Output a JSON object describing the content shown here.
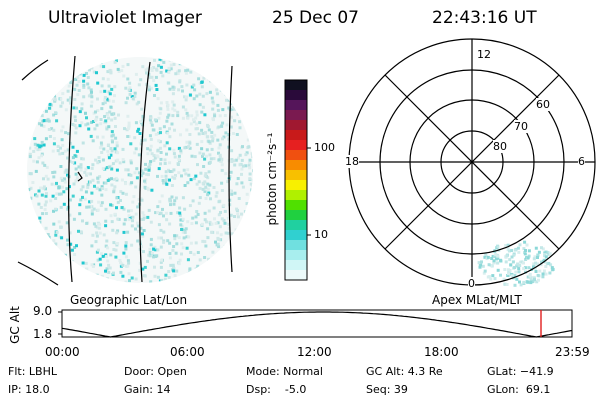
{
  "header": {
    "title": "Ultraviolet Imager",
    "date": "25 Dec 07",
    "time": "22:43:16 UT"
  },
  "colorbar": {
    "unit_label": "photon cm⁻²s⁻¹",
    "ticks": [
      "100",
      "10"
    ],
    "colors": [
      "#101020",
      "#2a0a3a",
      "#55155a",
      "#7a1a50",
      "#a01830",
      "#c81a1a",
      "#e62020",
      "#f05010",
      "#f88c00",
      "#f8c000",
      "#f8f000",
      "#b0f000",
      "#50e000",
      "#20d040",
      "#20d0a0",
      "#30d0d0",
      "#70e0e0",
      "#a8eeee",
      "#d0f6f6",
      "#ecfafa"
    ]
  },
  "panels": {
    "left_label": "Geographic Lat/Lon",
    "right_label": "Apex MLat/MLT"
  },
  "polar": {
    "mlt_labels": [
      "12",
      "18",
      "6",
      "0"
    ],
    "lat_labels": [
      "60",
      "70",
      "80"
    ]
  },
  "gc_plot": {
    "ylabel": "GC Alt",
    "y_ticks": [
      "9.0",
      "1.8"
    ],
    "x_ticks": [
      "00:00",
      "06:00",
      "12:00",
      "18:00",
      "23:59"
    ],
    "marker_color": "#e02020"
  },
  "info": {
    "filter": "Flt: LBHL",
    "ip": "IP: 18.0",
    "door": "Door: Open",
    "gain": "Gain: 14",
    "mode": "Mode: Normal",
    "dsp": "Dsp:    -5.0",
    "gcalt": "GC Alt: 4.3 Re",
    "seq": "Seq: 39",
    "glat": "GLat: −41.9",
    "glon": "GLon:  69.1"
  }
}
